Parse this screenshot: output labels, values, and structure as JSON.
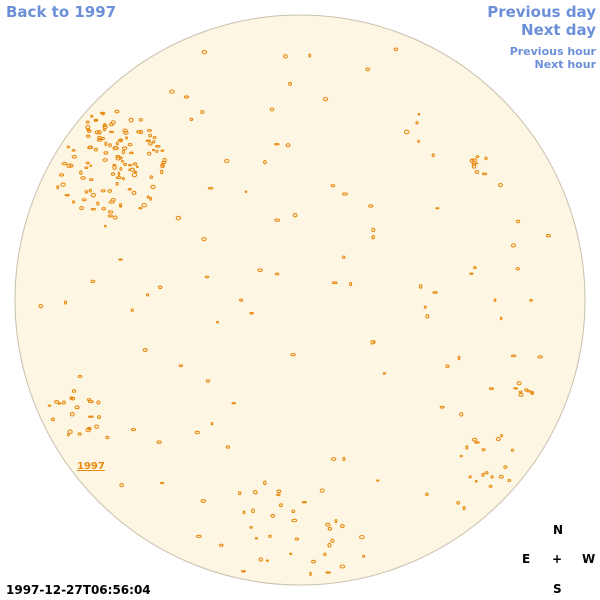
{
  "nav": {
    "back_label": "Back to 1997",
    "previous_day_label": "Previous day",
    "next_day_label": "Next day",
    "previous_hour_label": "Previous hour",
    "next_hour_label": "Next hour"
  },
  "year_label": "1997",
  "timestamp": "1997-12-27T06:56:04",
  "compass": {
    "north": "N",
    "east": "E",
    "center": "+",
    "west": "W",
    "south": "S"
  },
  "colors": {
    "nav_link": "#6b8fd8",
    "disk_fill": "#fdf6e3",
    "disk_border": "#c8c0b0",
    "contour": "#e88a10"
  }
}
